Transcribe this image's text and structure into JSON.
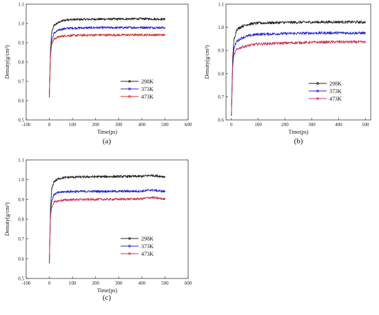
{
  "chart_data": [
    {
      "type": "line",
      "panel_label": "(a)",
      "xlabel": "Time(ps)",
      "ylabel": "Density(g/cm³)",
      "xlim": [
        -100,
        600
      ],
      "ylim": [
        0.5,
        1.1
      ],
      "xticks": [
        -100,
        0,
        100,
        200,
        300,
        400,
        500,
        600
      ],
      "yticks": [
        0.5,
        0.6,
        0.7,
        0.8,
        0.9,
        1.0,
        1.1
      ],
      "legend_position": "center-right",
      "series": [
        {
          "name": "298K",
          "color": "#222222",
          "x": [
            0,
            5,
            10,
            20,
            40,
            60,
            80,
            100,
            200,
            300,
            400,
            500
          ],
          "values": [
            0.62,
            0.86,
            0.95,
            0.99,
            1.005,
            1.015,
            1.02,
            1.02,
            1.022,
            1.023,
            1.024,
            1.022
          ]
        },
        {
          "name": "373K",
          "color": "#2222dd",
          "x": [
            0,
            5,
            10,
            20,
            40,
            60,
            80,
            100,
            200,
            300,
            400,
            500
          ],
          "values": [
            0.62,
            0.84,
            0.91,
            0.95,
            0.965,
            0.972,
            0.975,
            0.976,
            0.978,
            0.978,
            0.979,
            0.978
          ]
        },
        {
          "name": "473K",
          "color": "#cc3322",
          "x": [
            0,
            5,
            10,
            20,
            40,
            60,
            80,
            100,
            200,
            300,
            400,
            500
          ],
          "values": [
            0.62,
            0.83,
            0.89,
            0.92,
            0.93,
            0.935,
            0.937,
            0.938,
            0.94,
            0.94,
            0.941,
            0.94
          ]
        }
      ]
    },
    {
      "type": "line",
      "panel_label": "(b)",
      "xlabel": "Time(ps)",
      "ylabel": "Density(g/cm³)",
      "xlim": [
        -20,
        520
      ],
      "ylim": [
        0.6,
        1.1
      ],
      "xticks": [
        0,
        100,
        200,
        300,
        400,
        500
      ],
      "yticks": [
        0.6,
        0.7,
        0.8,
        0.9,
        1.0,
        1.1
      ],
      "legend_position": "center-right",
      "series": [
        {
          "name": "298K",
          "color": "#222222",
          "x": [
            0,
            5,
            10,
            20,
            40,
            60,
            80,
            100,
            200,
            300,
            400,
            500
          ],
          "values": [
            0.62,
            0.87,
            0.95,
            0.99,
            1.005,
            1.012,
            1.016,
            1.018,
            1.021,
            1.022,
            1.023,
            1.022
          ]
        },
        {
          "name": "373K",
          "color": "#2222dd",
          "x": [
            0,
            5,
            10,
            20,
            40,
            60,
            80,
            100,
            200,
            300,
            400,
            500
          ],
          "values": [
            0.62,
            0.85,
            0.91,
            0.94,
            0.955,
            0.962,
            0.967,
            0.97,
            0.973,
            0.975,
            0.976,
            0.975
          ]
        },
        {
          "name": "473K",
          "color": "#cc3355",
          "x": [
            0,
            5,
            10,
            20,
            40,
            60,
            80,
            100,
            200,
            300,
            400,
            500
          ],
          "values": [
            0.62,
            0.83,
            0.88,
            0.905,
            0.915,
            0.92,
            0.925,
            0.928,
            0.932,
            0.935,
            0.937,
            0.936
          ]
        }
      ]
    },
    {
      "type": "line",
      "panel_label": "(c)",
      "xlabel": "Time(ps)",
      "ylabel": "Density(g/cm³)",
      "xlim": [
        -100,
        600
      ],
      "ylim": [
        0.5,
        1.1
      ],
      "xticks": [
        -100,
        0,
        100,
        200,
        300,
        400,
        500,
        600
      ],
      "yticks": [
        0.5,
        0.6,
        0.7,
        0.8,
        0.9,
        1.0,
        1.1
      ],
      "legend_position": "center-right",
      "series": [
        {
          "name": "298K",
          "color": "#222222",
          "x": [
            0,
            5,
            10,
            20,
            40,
            60,
            80,
            100,
            200,
            300,
            400,
            440,
            500
          ],
          "values": [
            0.58,
            0.85,
            0.95,
            0.99,
            1.005,
            1.01,
            1.012,
            1.013,
            1.015,
            1.016,
            1.017,
            1.022,
            1.015
          ]
        },
        {
          "name": "373K",
          "color": "#2222dd",
          "x": [
            0,
            5,
            10,
            20,
            40,
            60,
            80,
            100,
            200,
            300,
            400,
            440,
            500
          ],
          "values": [
            0.58,
            0.82,
            0.89,
            0.925,
            0.935,
            0.938,
            0.94,
            0.94,
            0.941,
            0.941,
            0.942,
            0.948,
            0.94
          ]
        },
        {
          "name": "473K",
          "color": "#cc3355",
          "x": [
            0,
            5,
            10,
            20,
            40,
            60,
            80,
            100,
            200,
            300,
            400,
            440,
            500
          ],
          "values": [
            0.58,
            0.81,
            0.86,
            0.885,
            0.893,
            0.896,
            0.898,
            0.899,
            0.9,
            0.901,
            0.903,
            0.91,
            0.902
          ]
        }
      ]
    }
  ]
}
